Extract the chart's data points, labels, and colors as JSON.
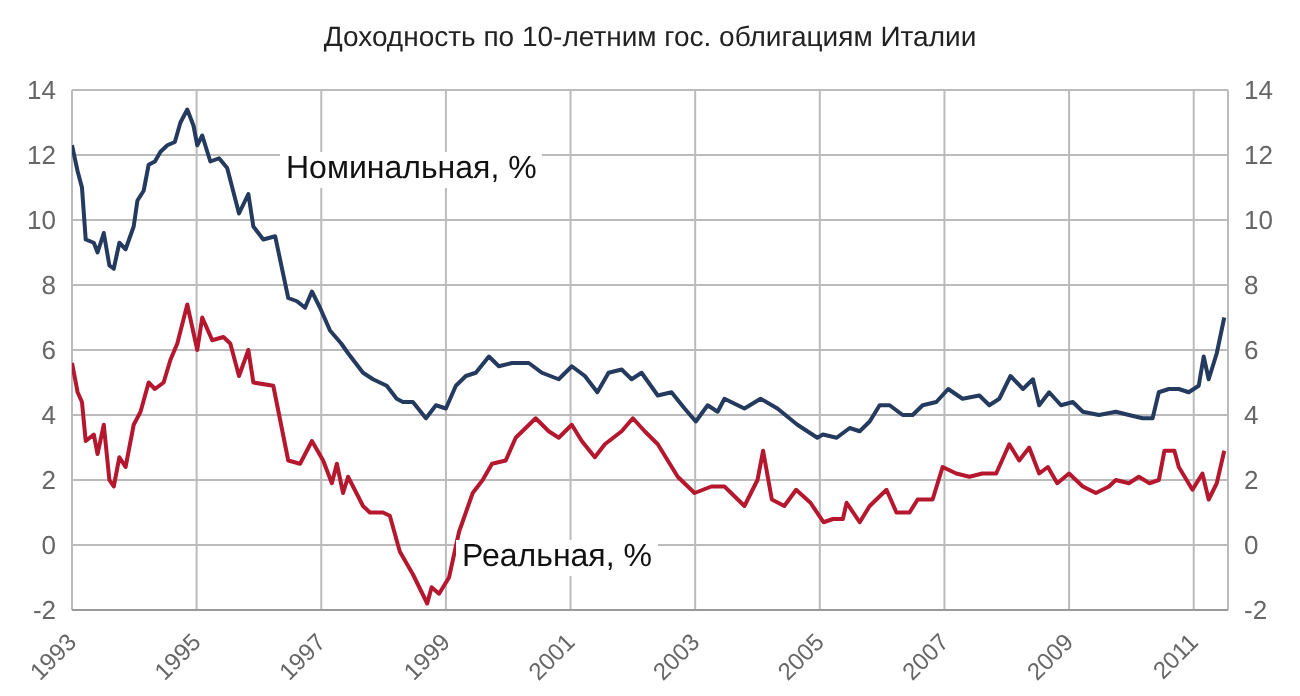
{
  "chart_data": {
    "type": "line",
    "title": "Доходность по 10-летним гос. облигациям Италии",
    "xlim": [
      1993,
      2011.55
    ],
    "xticks": [
      1993,
      1995,
      1997,
      1999,
      2001,
      2003,
      2005,
      2007,
      2009,
      2011
    ],
    "ylim": [
      -2,
      14
    ],
    "yticks": [
      -2,
      0,
      2,
      4,
      6,
      8,
      10,
      12,
      14
    ],
    "y2lim": [
      -2,
      14
    ],
    "y2ticks": [
      -2,
      0,
      2,
      4,
      6,
      8,
      10,
      12,
      14
    ],
    "grid": true,
    "marker": "none",
    "line_style": "solid",
    "series": [
      {
        "name": "Номинальная, %",
        "color": "#243a5e",
        "x": [
          1993.0,
          1993.09,
          1993.16,
          1993.22,
          1993.35,
          1993.41,
          1993.51,
          1993.6,
          1993.67,
          1993.76,
          1993.86,
          1993.99,
          1994.05,
          1994.15,
          1994.23,
          1994.33,
          1994.42,
          1994.53,
          1994.65,
          1994.74,
          1994.85,
          1994.95,
          1995.01,
          1995.09,
          1995.22,
          1995.36,
          1995.49,
          1995.68,
          1995.83,
          1995.91,
          1996.07,
          1996.26,
          1996.47,
          1996.61,
          1996.74,
          1996.85,
          1996.98,
          1997.14,
          1997.32,
          1997.43,
          1997.67,
          1997.83,
          1998.05,
          1998.21,
          1998.31,
          1998.47,
          1998.68,
          1998.84,
          1999.0,
          1999.16,
          1999.32,
          1999.48,
          1999.69,
          1999.85,
          2000.06,
          2000.33,
          2000.54,
          2000.81,
          2001.02,
          2001.23,
          2001.43,
          2001.61,
          2001.82,
          2001.98,
          2002.14,
          2002.4,
          2002.62,
          2002.83,
          2003.01,
          2003.2,
          2003.36,
          2003.47,
          2003.79,
          2004.05,
          2004.32,
          2004.64,
          2004.96,
          2005.05,
          2005.27,
          2005.48,
          2005.64,
          2005.8,
          2005.96,
          2006.12,
          2006.33,
          2006.49,
          2006.65,
          2006.87,
          2007.06,
          2007.29,
          2007.56,
          2007.72,
          2007.88,
          2008.06,
          2008.26,
          2008.42,
          2008.52,
          2008.68,
          2008.87,
          2009.06,
          2009.22,
          2009.48,
          2009.75,
          2009.96,
          2010.18,
          2010.34,
          2010.44,
          2010.6,
          2010.76,
          2010.92,
          2011.08,
          2011.16,
          2011.24,
          2011.37,
          2011.49
        ],
        "values": [
          12.3,
          11.5,
          11.0,
          9.4,
          9.3,
          9.0,
          9.6,
          8.6,
          8.5,
          9.3,
          9.1,
          9.8,
          10.6,
          10.9,
          11.7,
          11.8,
          12.1,
          12.3,
          12.4,
          13.0,
          13.4,
          12.9,
          12.3,
          12.6,
          11.8,
          11.9,
          11.6,
          10.2,
          10.8,
          9.8,
          9.4,
          9.5,
          7.6,
          7.5,
          7.3,
          7.8,
          7.3,
          6.6,
          6.2,
          5.9,
          5.3,
          5.1,
          4.9,
          4.5,
          4.4,
          4.4,
          3.9,
          4.3,
          4.2,
          4.9,
          5.2,
          5.3,
          5.8,
          5.5,
          5.6,
          5.6,
          5.3,
          5.1,
          5.5,
          5.2,
          4.7,
          5.3,
          5.4,
          5.1,
          5.3,
          4.6,
          4.7,
          4.2,
          3.8,
          4.3,
          4.1,
          4.5,
          4.2,
          4.5,
          4.2,
          3.7,
          3.3,
          3.4,
          3.3,
          3.6,
          3.5,
          3.8,
          4.3,
          4.3,
          4.0,
          4.0,
          4.3,
          4.4,
          4.8,
          4.5,
          4.6,
          4.3,
          4.5,
          5.2,
          4.8,
          5.1,
          4.3,
          4.7,
          4.3,
          4.4,
          4.1,
          4.0,
          4.1,
          4.0,
          3.9,
          3.9,
          4.7,
          4.8,
          4.8,
          4.7,
          4.9,
          5.8,
          5.1,
          5.9,
          7.0
        ]
      },
      {
        "name": "Реальная, %",
        "color": "#b5182e",
        "x": [
          1993.0,
          1993.09,
          1993.16,
          1993.22,
          1993.35,
          1993.41,
          1993.51,
          1993.6,
          1993.67,
          1993.76,
          1993.86,
          1993.99,
          1994.1,
          1994.23,
          1994.33,
          1994.47,
          1994.58,
          1994.69,
          1994.85,
          1995.01,
          1995.09,
          1995.25,
          1995.43,
          1995.54,
          1995.68,
          1995.83,
          1995.91,
          1996.23,
          1996.47,
          1996.66,
          1996.85,
          1997.03,
          1997.17,
          1997.25,
          1997.35,
          1997.43,
          1997.67,
          1997.78,
          1997.99,
          1998.1,
          1998.26,
          1998.47,
          1998.7,
          1998.77,
          1998.89,
          1999.05,
          1999.21,
          1999.43,
          1999.59,
          1999.74,
          1999.96,
          2000.12,
          2000.28,
          2000.44,
          2000.65,
          2000.81,
          2001.02,
          2001.18,
          2001.39,
          2001.55,
          2001.82,
          2002.0,
          2002.19,
          2002.4,
          2002.72,
          2002.99,
          2003.26,
          2003.47,
          2003.79,
          2004.0,
          2004.09,
          2004.23,
          2004.43,
          2004.62,
          2004.85,
          2005.06,
          2005.21,
          2005.37,
          2005.43,
          2005.64,
          2005.8,
          2006.07,
          2006.23,
          2006.44,
          2006.57,
          2006.81,
          2006.97,
          2007.19,
          2007.4,
          2007.61,
          2007.83,
          2008.04,
          2008.2,
          2008.36,
          2008.52,
          2008.66,
          2008.81,
          2009.0,
          2009.22,
          2009.43,
          2009.64,
          2009.75,
          2009.96,
          2010.12,
          2010.29,
          2010.44,
          2010.53,
          2010.69,
          2010.76,
          2010.98,
          2011.14,
          2011.24,
          2011.37,
          2011.49
        ],
        "values": [
          5.6,
          4.7,
          4.4,
          3.2,
          3.4,
          2.8,
          3.7,
          2.0,
          1.8,
          2.7,
          2.4,
          3.7,
          4.1,
          5.0,
          4.8,
          5.0,
          5.7,
          6.2,
          7.4,
          6.0,
          7.0,
          6.3,
          6.4,
          6.2,
          5.2,
          6.0,
          5.0,
          4.9,
          2.6,
          2.5,
          3.2,
          2.6,
          1.9,
          2.5,
          1.6,
          2.1,
          1.2,
          1.0,
          1.0,
          0.9,
          -0.2,
          -0.9,
          -1.8,
          -1.3,
          -1.5,
          -1.0,
          0.4,
          1.6,
          2.0,
          2.5,
          2.6,
          3.3,
          3.6,
          3.9,
          3.5,
          3.3,
          3.7,
          3.2,
          2.7,
          3.1,
          3.5,
          3.9,
          3.5,
          3.1,
          2.1,
          1.6,
          1.8,
          1.8,
          1.2,
          2.0,
          2.9,
          1.4,
          1.2,
          1.7,
          1.3,
          0.7,
          0.8,
          0.8,
          1.3,
          0.7,
          1.2,
          1.7,
          1.0,
          1.0,
          1.4,
          1.4,
          2.4,
          2.2,
          2.1,
          2.2,
          2.2,
          3.1,
          2.6,
          3.0,
          2.2,
          2.4,
          1.9,
          2.2,
          1.8,
          1.6,
          1.8,
          2.0,
          1.9,
          2.1,
          1.9,
          2.0,
          2.9,
          2.9,
          2.4,
          1.7,
          2.2,
          1.4,
          1.9,
          2.9
        ]
      }
    ]
  }
}
